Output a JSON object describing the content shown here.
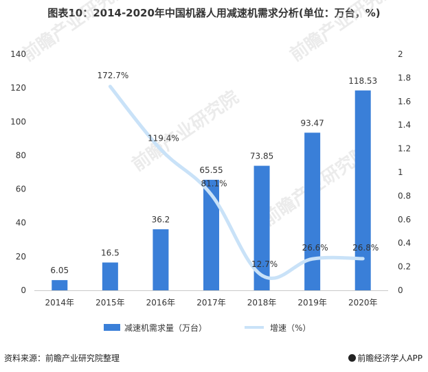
{
  "title": "图表10：2014-2020年中国机器人用减速机需求分析(单位：万台，%)",
  "source": "资料来源：前瞻产业研究院整理",
  "brand": "前瞻经济学人APP",
  "watermark": "前瞻产业研究院",
  "colors": {
    "bar": "#3a7fd8",
    "line": "#c9e2f8",
    "text": "#333333"
  },
  "chart_data": {
    "type": "bar",
    "categories": [
      "2014年",
      "2015年",
      "2016年",
      "2017年",
      "2018年",
      "2019年",
      "2020年"
    ],
    "y_left": {
      "min": 0,
      "max": 140,
      "ticks": [
        0,
        20,
        40,
        60,
        80,
        100,
        120,
        140
      ]
    },
    "y_right": {
      "min": 0,
      "max": 2,
      "ticks": [
        "0",
        "0.2",
        "0.4",
        "0.6",
        "0.8",
        "1",
        "1.2",
        "1.4",
        "1.6",
        "1.8",
        "2"
      ]
    },
    "series": [
      {
        "name": "减速机需求量（万台）",
        "type": "bar",
        "axis": "left",
        "values": [
          6.05,
          16.5,
          36.2,
          65.55,
          73.85,
          93.47,
          118.53
        ],
        "labels": [
          "6.05",
          "16.5",
          "36.2",
          "65.55",
          "73.85",
          "93.47",
          "118.53"
        ]
      },
      {
        "name": "增速（%）",
        "type": "line",
        "axis": "right",
        "values": [
          null,
          1.727,
          1.194,
          0.811,
          0.127,
          0.266,
          0.268
        ],
        "labels": [
          "",
          "172.7%",
          "119.4%",
          "81.1%",
          "12.7%",
          "26.6%",
          "26.8%"
        ]
      }
    ],
    "legend": "bottom",
    "grid": false
  }
}
